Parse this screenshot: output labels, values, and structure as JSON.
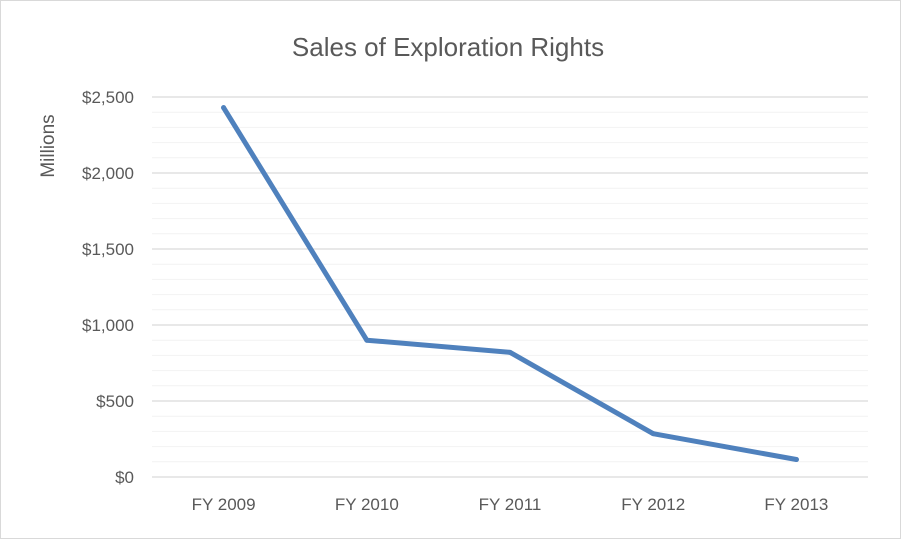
{
  "chart_data": {
    "type": "line",
    "title": "Sales of Exploration Rights",
    "xlabel": "",
    "ylabel": "Millions",
    "categories": [
      "FY 2009",
      "FY 2010",
      "FY 2011",
      "FY 2012",
      "FY 2013"
    ],
    "series": [
      {
        "values": [
          2430,
          900,
          820,
          285,
          115
        ]
      }
    ],
    "ylim": [
      0,
      2500
    ],
    "yticks": [
      0,
      500,
      1000,
      1500,
      2000,
      2500
    ],
    "ytick_labels": [
      "$0",
      "$500",
      "$1,000",
      "$1,500",
      "$2,000",
      "$2,500"
    ],
    "minor_grid_step": 100,
    "grid": true,
    "legend": "none",
    "colors": {
      "line": "#4f81bd",
      "major_grid": "#d9d9d9",
      "minor_grid": "#f2f2f2",
      "text": "#595959"
    }
  }
}
